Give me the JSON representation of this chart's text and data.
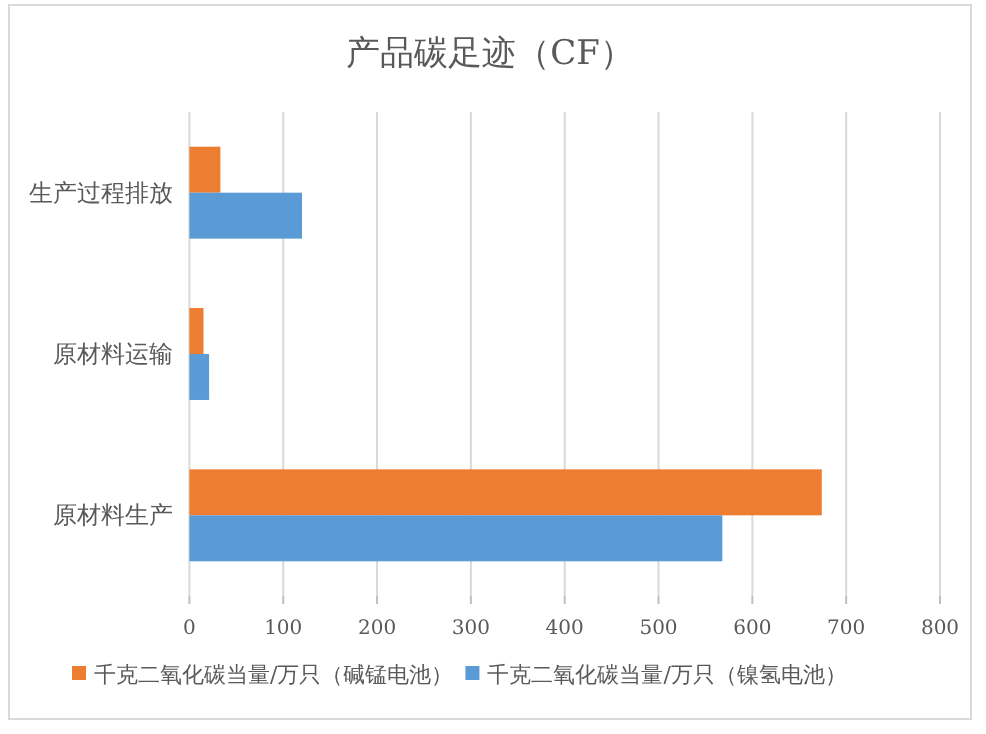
{
  "chart_data": {
    "type": "bar",
    "orientation": "horizontal",
    "title": "产品碳足迹（CF）",
    "categories": [
      "生产过程排放",
      "原材料运输",
      "原材料生产"
    ],
    "series": [
      {
        "name": "千克二氧化碳当量/万只（碱锰电池）",
        "color": "#ed7d31",
        "values": [
          33,
          15,
          674
        ]
      },
      {
        "name": "千克二氧化碳当量/万只（镍氢电池）",
        "color": "#5b9bd5",
        "values": [
          120,
          21,
          568
        ]
      }
    ],
    "xlim": [
      0,
      800
    ],
    "xticks": [
      0,
      100,
      200,
      300,
      400,
      500,
      600,
      700,
      800
    ],
    "grid": "x",
    "legend": "bottom"
  }
}
